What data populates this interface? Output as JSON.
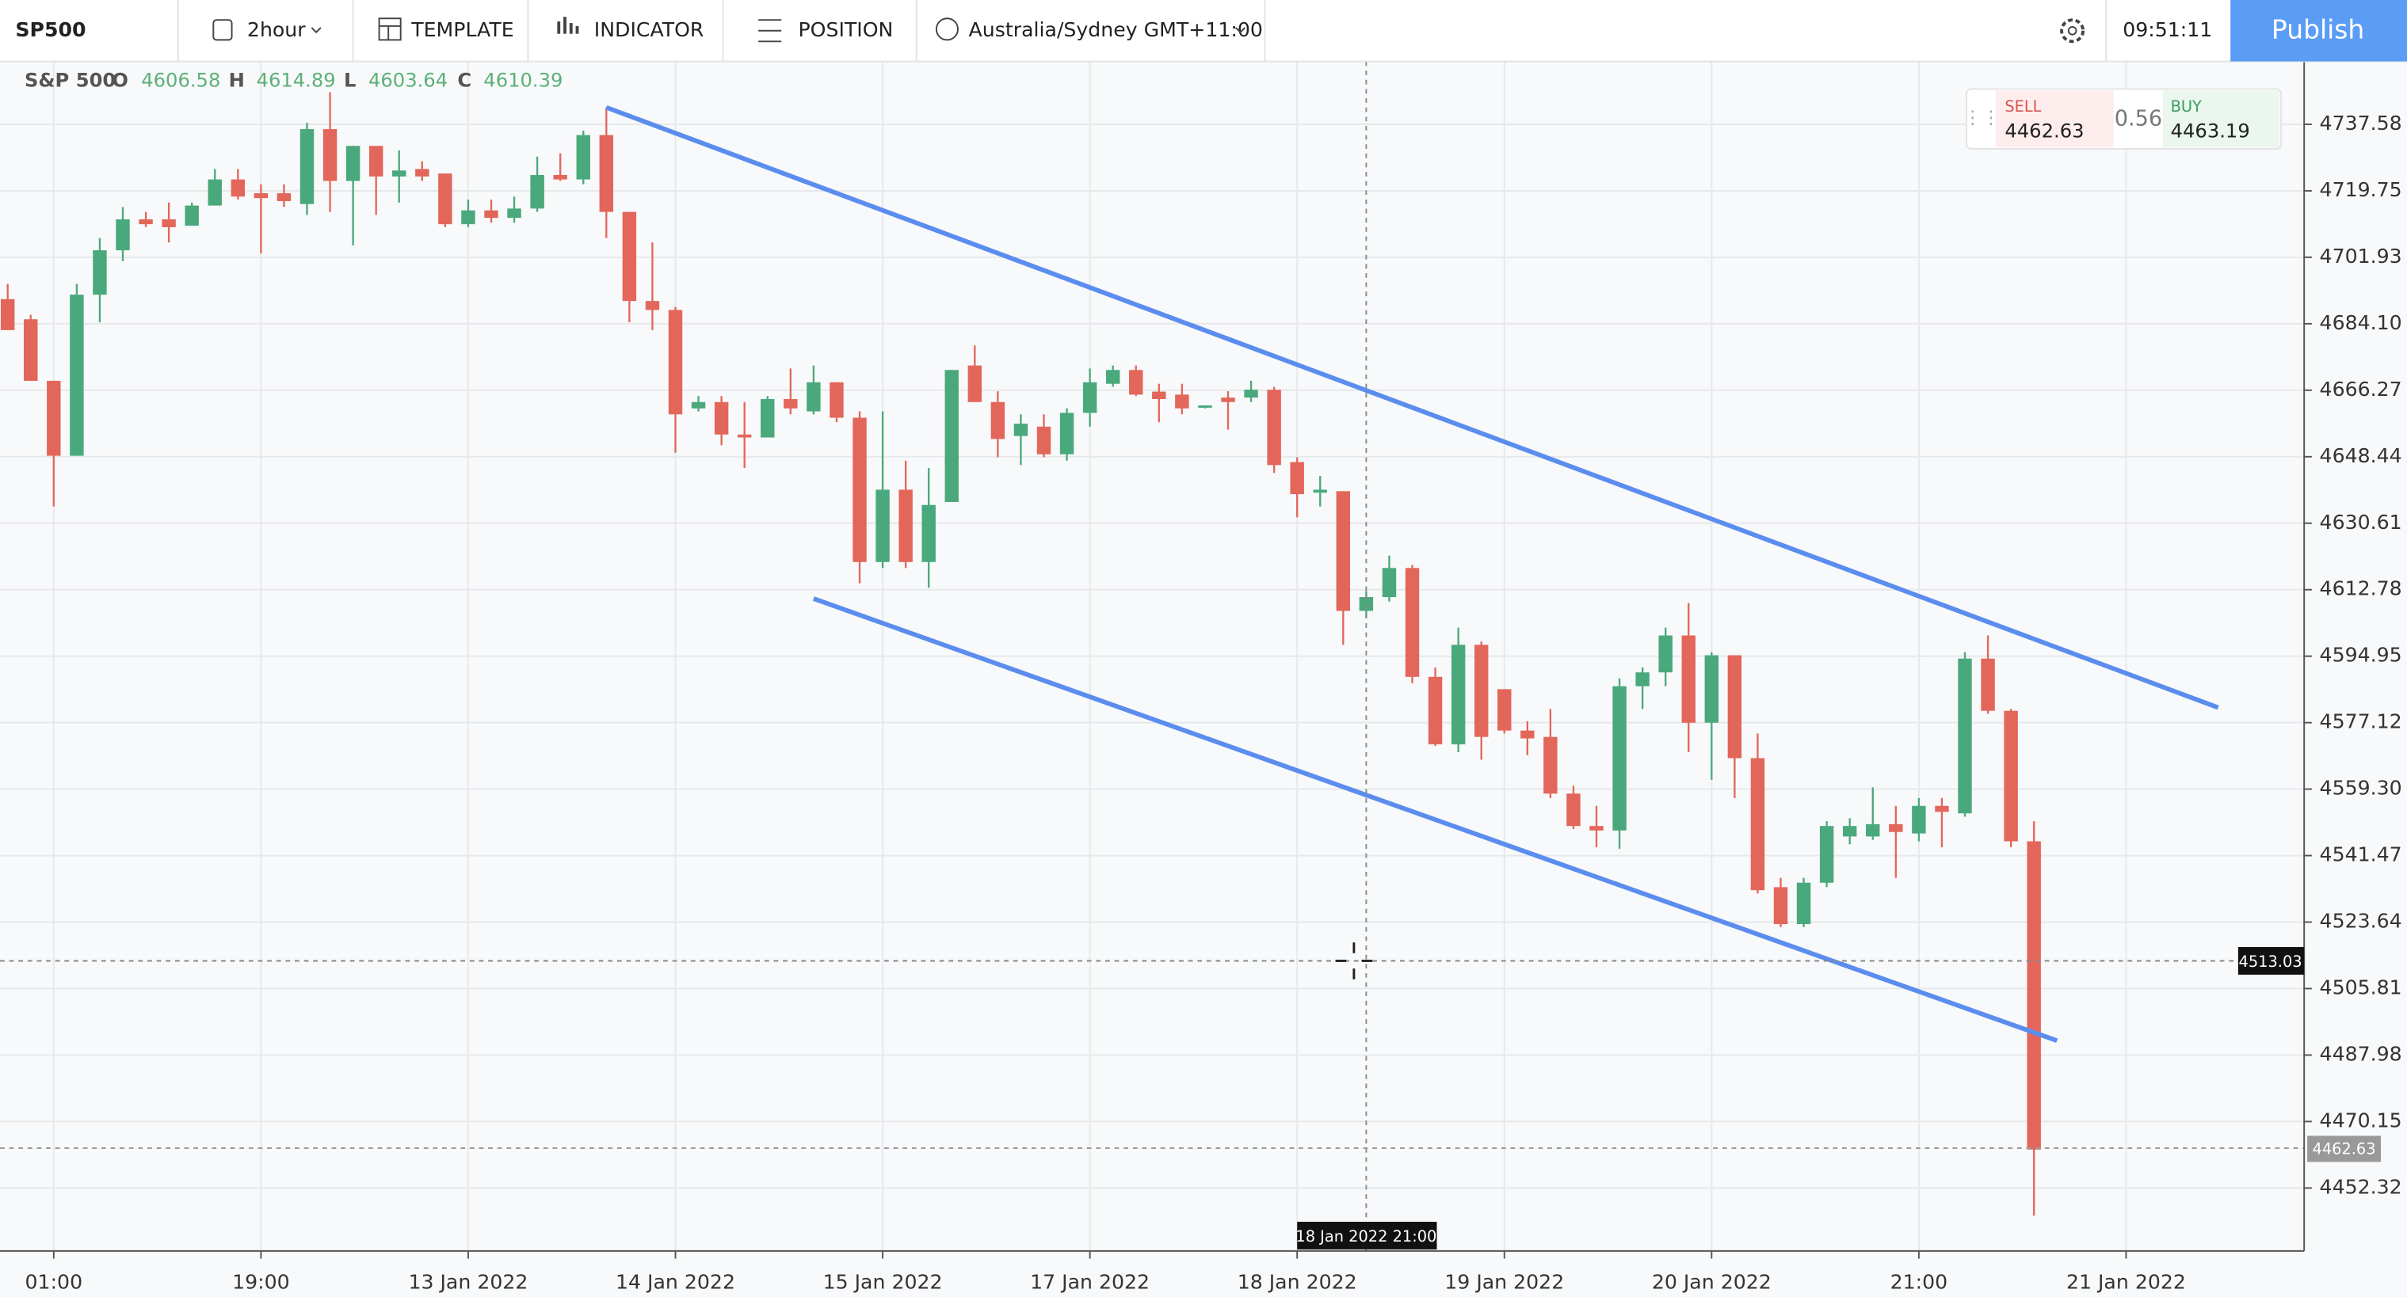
{
  "toolbar": {
    "symbol": "SP500",
    "interval": "2hour",
    "template": "TEMPLATE",
    "indicator": "INDICATOR",
    "position": "POSITION",
    "timezone": "Australia/Sydney GMT+11:00",
    "time": "09:51:11",
    "publish": "Publish"
  },
  "legend": {
    "name": "S&P 500",
    "open_label": "O",
    "open": 4606.58,
    "high_label": "H",
    "high": 4614.89,
    "low_label": "L",
    "low": 4603.64,
    "close_label": "C",
    "close": 4610.39
  },
  "quote": {
    "sell_label": "SELL",
    "sell": 4462.63,
    "spread": 0.56,
    "buy_label": "BUY",
    "buy": 4463.19
  },
  "crosshair": {
    "price": 4513.03,
    "time": "18 Jan 2022 21:00"
  },
  "last_price": 4462.63,
  "chart_data": {
    "type": "candlestick",
    "categories": [
      null,
      null,
      "01:00",
      null,
      null,
      null,
      null,
      null,
      null,
      null,
      null,
      "19:00",
      null,
      null,
      null,
      null,
      null,
      null,
      null,
      null,
      "13 Jan 2022",
      null,
      null,
      null,
      null,
      null,
      null,
      null,
      null,
      "14 Jan 2022",
      null,
      null,
      null,
      null,
      null,
      null,
      null,
      null,
      "15 Jan 2022",
      null,
      null,
      null,
      null,
      null,
      null,
      null,
      null,
      "17 Jan 2022",
      null,
      null,
      null,
      null,
      null,
      null,
      null,
      null,
      "18 Jan 2022",
      null,
      null,
      null,
      null,
      null,
      null,
      null,
      null,
      "19 Jan 2022",
      null,
      null,
      null,
      null,
      null,
      null,
      null,
      null,
      "20 Jan 2022",
      null,
      null,
      null,
      null,
      null,
      null,
      null,
      null,
      "21:00",
      null,
      null,
      null,
      null,
      null,
      null,
      null,
      null,
      "21 Jan 2022"
    ],
    "open": [
      4690.7,
      4685.3,
      4668.8,
      4648.7,
      4691.9,
      4703.8,
      4712.1,
      4712.1,
      4710.4,
      4715.8,
      4722.8,
      4719.1,
      4719.1,
      4716.2,
      4736.3,
      4722.4,
      4731.8,
      4723.6,
      4725.6,
      4724.4,
      4710.8,
      4714.5,
      4712.5,
      4715.0,
      4724.0,
      4722.8,
      4734.7,
      4714.1,
      4690.2,
      4687.8,
      4661.4,
      4663.1,
      4654.4,
      4653.6,
      4663.9,
      4660.6,
      4668.4,
      4658.9,
      4620.2,
      4639.6,
      4620.2,
      4636.3,
      4672.9,
      4663.1,
      4654.0,
      4656.5,
      4649.1,
      4660.2,
      4668.0,
      4671.7,
      4665.9,
      4665.1,
      4661.8,
      4664.3,
      4664.3,
      4666.4,
      4647.0,
      4638.8,
      4639.2,
      4607.1,
      4610.8,
      4618.6,
      4589.4,
      4571.3,
      4598.0,
      4586.1,
      4575.0,
      4573.3,
      4558.1,
      4549.4,
      4548.2,
      4586.9,
      4590.6,
      4600.5,
      4577.1,
      4595.2,
      4567.6,
      4533.0,
      4523.1,
      4534.2,
      4546.6,
      4546.6,
      4549.9,
      4547.4,
      4554.8,
      4552.8,
      4594.3,
      4580.3,
      4545.3,
      null,
      null,
      null,
      null
    ],
    "high": [
      4694.8,
      4686.5,
      4668.8,
      4694.8,
      4707.1,
      4715.4,
      4714.1,
      4716.6,
      4716.6,
      4725.6,
      4725.6,
      4721.5,
      4721.5,
      4738.0,
      4746.2,
      4731.8,
      4731.8,
      4730.6,
      4727.7,
      4724.4,
      4717.4,
      4717.4,
      4718.2,
      4728.9,
      4729.8,
      4735.9,
      4742.1,
      4714.1,
      4705.9,
      4688.6,
      4664.7,
      4664.7,
      4663.1,
      4664.7,
      4672.1,
      4672.9,
      4668.4,
      4660.6,
      4660.6,
      4647.4,
      4645.4,
      4671.7,
      4678.3,
      4666.0,
      4659.8,
      4659.8,
      4661.4,
      4672.1,
      4672.9,
      4672.9,
      4668.0,
      4668.0,
      4662.2,
      4666.0,
      4668.8,
      4667.2,
      4648.3,
      4643.3,
      4639.2,
      4612.4,
      4621.9,
      4619.4,
      4591.9,
      4602.6,
      4598.9,
      4586.1,
      4577.5,
      4580.8,
      4560.2,
      4554.8,
      4589.0,
      4591.9,
      4602.6,
      4609.2,
      4596.0,
      4595.2,
      4574.2,
      4535.5,
      4535.5,
      4550.7,
      4551.5,
      4559.8,
      4554.8,
      4556.9,
      4556.9,
      4596.0,
      4600.5,
      4580.8,
      4550.7,
      null,
      null,
      null,
      null
    ],
    "low": [
      4682.4,
      4668.8,
      4635.1,
      4648.7,
      4684.5,
      4700.9,
      4710.0,
      4705.9,
      4710.4,
      4715.8,
      4717.4,
      4703.0,
      4715.4,
      4713.3,
      4714.1,
      4705.1,
      4713.3,
      4716.6,
      4722.4,
      4710.0,
      4710.0,
      4711.2,
      4711.2,
      4714.1,
      4722.4,
      4721.5,
      4707.1,
      4684.5,
      4682.4,
      4649.5,
      4660.6,
      4651.5,
      4645.4,
      4653.6,
      4659.8,
      4659.8,
      4657.7,
      4614.5,
      4618.6,
      4618.6,
      4613.3,
      4636.3,
      4663.1,
      4648.3,
      4646.2,
      4648.3,
      4647.4,
      4656.5,
      4667.2,
      4664.7,
      4657.7,
      4659.8,
      4661.4,
      4655.7,
      4663.1,
      4644.1,
      4632.2,
      4635.1,
      4598.0,
      4605.4,
      4609.6,
      4587.7,
      4570.9,
      4569.2,
      4567.2,
      4574.2,
      4568.4,
      4556.9,
      4548.6,
      4543.7,
      4543.3,
      4580.8,
      4586.9,
      4569.2,
      4561.8,
      4556.9,
      4531.3,
      4522.3,
      4522.3,
      4533.0,
      4544.5,
      4545.7,
      4535.5,
      4545.3,
      4543.7,
      4551.9,
      4579.5,
      4543.7,
      4444.9,
      null,
      null,
      null,
      null
    ],
    "close": [
      4682.4,
      4668.8,
      4648.7,
      4691.9,
      4703.8,
      4712.1,
      4710.8,
      4710.0,
      4715.8,
      4722.8,
      4718.2,
      4717.8,
      4717.0,
      4736.3,
      4722.4,
      4731.8,
      4723.6,
      4725.2,
      4723.6,
      4710.8,
      4714.5,
      4712.5,
      4715.0,
      4724.0,
      4722.8,
      4734.7,
      4714.1,
      4690.2,
      4687.8,
      4659.8,
      4663.1,
      4654.4,
      4653.6,
      4663.9,
      4661.4,
      4668.4,
      4658.9,
      4620.2,
      4639.6,
      4620.2,
      4635.5,
      4671.7,
      4663.1,
      4653.2,
      4657.3,
      4649.1,
      4660.2,
      4668.4,
      4671.7,
      4665.1,
      4663.9,
      4661.4,
      4662.2,
      4663.1,
      4666.4,
      4646.2,
      4638.4,
      4639.6,
      4607.1,
      4610.8,
      4618.6,
      4589.4,
      4571.3,
      4598.0,
      4573.3,
      4575.0,
      4572.9,
      4558.1,
      4549.4,
      4548.2,
      4586.9,
      4590.6,
      4600.5,
      4577.1,
      4595.2,
      4567.6,
      4532.2,
      4523.1,
      4534.2,
      4549.4,
      4549.4,
      4549.9,
      4547.8,
      4554.8,
      4553.2,
      4594.3,
      4580.3,
      4545.3,
      4462.63,
      null,
      null,
      null,
      null
    ],
    "up_color": "#4aa97c",
    "down_color": "#e3665b",
    "ylim": [
      4435.44,
      4754.46
    ],
    "yticks": [
      4452.32,
      4470.15,
      4487.98,
      4505.81,
      4523.64,
      4541.47,
      {
        "value": 4559.3,
        "label": "4559.30"
      },
      4577.12,
      4594.95,
      4612.78,
      4630.61,
      4648.44,
      4666.27,
      {
        "value": 4684.1,
        "label": "4684.10"
      },
      4701.93,
      4719.75,
      4737.58
    ],
    "grid": true
  }
}
